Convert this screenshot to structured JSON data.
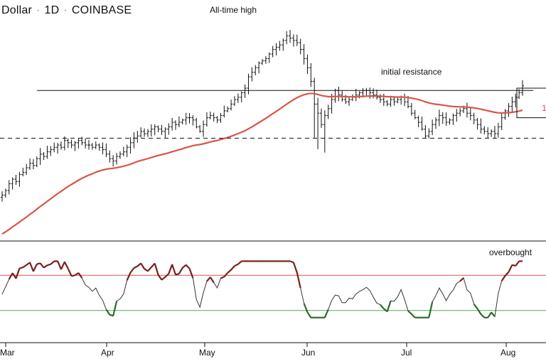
{
  "header": {
    "symbol": "Dollar",
    "interval": "1D",
    "exchange": "COINBASE"
  },
  "annotations": {
    "ath": "All-time high",
    "resistance": "initial resistance",
    "overbought": "overbought",
    "ma_tag": "1"
  },
  "colors": {
    "price_bars": "#111111",
    "moving_average": "#d9544a",
    "levels": "#111111",
    "rsi_line": "#333333",
    "rsi_overbought_line": "#d9544a",
    "rsi_oversold_line": "#55aa55",
    "rsi_overbought_segments": "#7a1f1f",
    "rsi_oversold_segments": "#2d6a2d"
  },
  "chart_data": [
    {
      "type": "ohlc",
      "title": "Dollar · 1D · COINBASE",
      "x_type": "date",
      "x_ticks": [
        "Mar",
        "Apr",
        "May",
        "Jun",
        "Jul",
        "Aug"
      ],
      "y_axis_visible": false,
      "ylim": [
        0,
        100
      ],
      "approximate": true,
      "closes": [
        48,
        50,
        53,
        55,
        54,
        57,
        58,
        60,
        62,
        61,
        64,
        66,
        65,
        67,
        68,
        69,
        70,
        69,
        72,
        71,
        70,
        71,
        72,
        71,
        70,
        70,
        69,
        70,
        69,
        68,
        66,
        64,
        63,
        65,
        66,
        67,
        69,
        71,
        73,
        74,
        76,
        75,
        76,
        77,
        78,
        77,
        76,
        77,
        78,
        80,
        79,
        80,
        81,
        82,
        82,
        81,
        78,
        76,
        79,
        82,
        83,
        82,
        81,
        83,
        85,
        86,
        88,
        90,
        91,
        93,
        95,
        100,
        102,
        104,
        106,
        107,
        108,
        110,
        112,
        113,
        114,
        116,
        118,
        117,
        116,
        115,
        112,
        108,
        104,
        98,
        88,
        84,
        79,
        83,
        86,
        90,
        94,
        92,
        90,
        89,
        90,
        91,
        92,
        93,
        94,
        94,
        93,
        92,
        91,
        90,
        89,
        88,
        90,
        89,
        90,
        91,
        89,
        87,
        84,
        82,
        80,
        77,
        74,
        76,
        79,
        81,
        83,
        82,
        80,
        81,
        83,
        84,
        85,
        86,
        84,
        83,
        81,
        79,
        77,
        76,
        75,
        76,
        75,
        78,
        82,
        85,
        87,
        89,
        91,
        93,
        96
      ],
      "series": [
        {
          "name": "",
          "kind": "moving_average",
          "style": "smooth"
        }
      ],
      "reference_lines": [
        {
          "kind": "horizontal",
          "value": 94,
          "label": "initial resistance",
          "style": "solid"
        },
        {
          "kind": "horizontal",
          "value": 73,
          "label": "",
          "style": "dashed"
        }
      ],
      "annotation_box": {
        "note": "recent bars boxed",
        "range_days": [
          150,
          160
        ]
      }
    },
    {
      "type": "line",
      "name": "",
      "ylim": [
        0,
        100
      ],
      "overbought_level": 70,
      "oversold_level": 30,
      "approximate": true,
      "values_follow_price": true
    }
  ]
}
